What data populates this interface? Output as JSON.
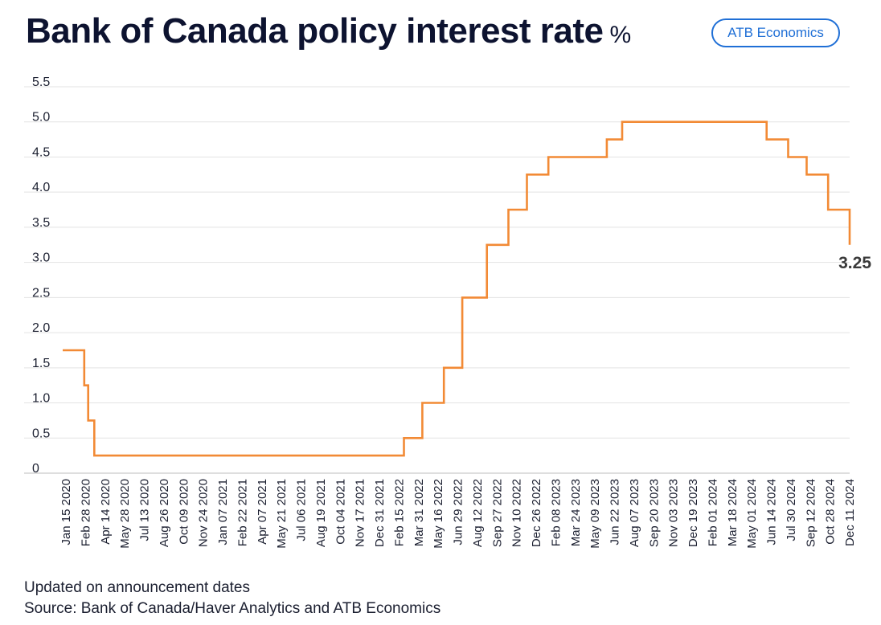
{
  "title": "Bank of Canada policy interest rate",
  "title_unit": "%",
  "badge": "ATB Economics",
  "footnote": "Updated on announcement dates",
  "source": "Source: Bank of Canada/Haver Analytics and ATB Economics",
  "colors": {
    "line": "#f28a35",
    "grid": "#e3e3e3",
    "text": "#0d1330",
    "badge": "#1f6fd6"
  },
  "chart_data": {
    "type": "line",
    "title": "Bank of Canada policy interest rate",
    "ylabel": "%",
    "xlabel": "",
    "ylim": [
      0,
      5.5
    ],
    "yticks": [
      0,
      0.5,
      1.0,
      1.5,
      2.0,
      2.5,
      3.0,
      3.5,
      4.0,
      4.5,
      5.0,
      5.5
    ],
    "ytick_labels": [
      "0",
      "0.5",
      "1.0",
      "1.5",
      "2.0",
      "2.5",
      "3.0",
      "3.5",
      "4.0",
      "4.5",
      "5.0",
      "5.5"
    ],
    "grid": true,
    "legend": "none",
    "xtick_labels": [
      "Jan 15 2020",
      "Feb 28 2020",
      "Apr 14 2020",
      "May 28 2020",
      "Jul 13 2020",
      "Aug 26 2020",
      "Oct 09 2020",
      "Nov 24 2020",
      "Jan 07 2021",
      "Feb 22 2021",
      "Apr 07 2021",
      "May 21 2021",
      "Jul 06 2021",
      "Aug 19 2021",
      "Oct 04 2021",
      "Nov 17 2021",
      "Dec 31 2021",
      "Feb 15 2022",
      "Mar 31 2022",
      "May 16 2022",
      "Jun 29 2022",
      "Aug 12 2022",
      "Sep 27 2022",
      "Nov 10 2022",
      "Dec 26 2022",
      "Feb 08 2023",
      "Mar 24 2023",
      "May 09 2023",
      "Jun 22 2023",
      "Aug 07 2023",
      "Sep 20 2023",
      "Nov 03 2023",
      "Dec 19 2023",
      "Feb 01 2024",
      "Mar 18 2024",
      "May 01 2024",
      "Jun 14 2024",
      "Jul 30 2024",
      "Sep 12 2024",
      "Oct 28 2024",
      "Dec 11 2024"
    ],
    "x_start": "2020-01-15",
    "x_end": "2024-12-11",
    "series": [
      {
        "step": true,
        "points": [
          [
            "2020-01-15",
            1.75
          ],
          [
            "2020-03-04",
            1.25
          ],
          [
            "2020-03-13",
            0.75
          ],
          [
            "2020-03-27",
            0.25
          ],
          [
            "2022-03-02",
            0.5
          ],
          [
            "2022-04-13",
            1.0
          ],
          [
            "2022-06-01",
            1.5
          ],
          [
            "2022-07-13",
            2.5
          ],
          [
            "2022-09-07",
            3.25
          ],
          [
            "2022-10-26",
            3.75
          ],
          [
            "2022-12-07",
            4.25
          ],
          [
            "2023-01-25",
            4.5
          ],
          [
            "2023-06-07",
            4.75
          ],
          [
            "2023-07-12",
            5.0
          ],
          [
            "2024-06-05",
            4.75
          ],
          [
            "2024-07-24",
            4.5
          ],
          [
            "2024-09-04",
            4.25
          ],
          [
            "2024-10-23",
            3.75
          ],
          [
            "2024-12-11",
            3.25
          ]
        ]
      }
    ],
    "annotations": [
      {
        "text": "3.25",
        "x": "2024-12-11",
        "y": 3.25
      }
    ]
  }
}
